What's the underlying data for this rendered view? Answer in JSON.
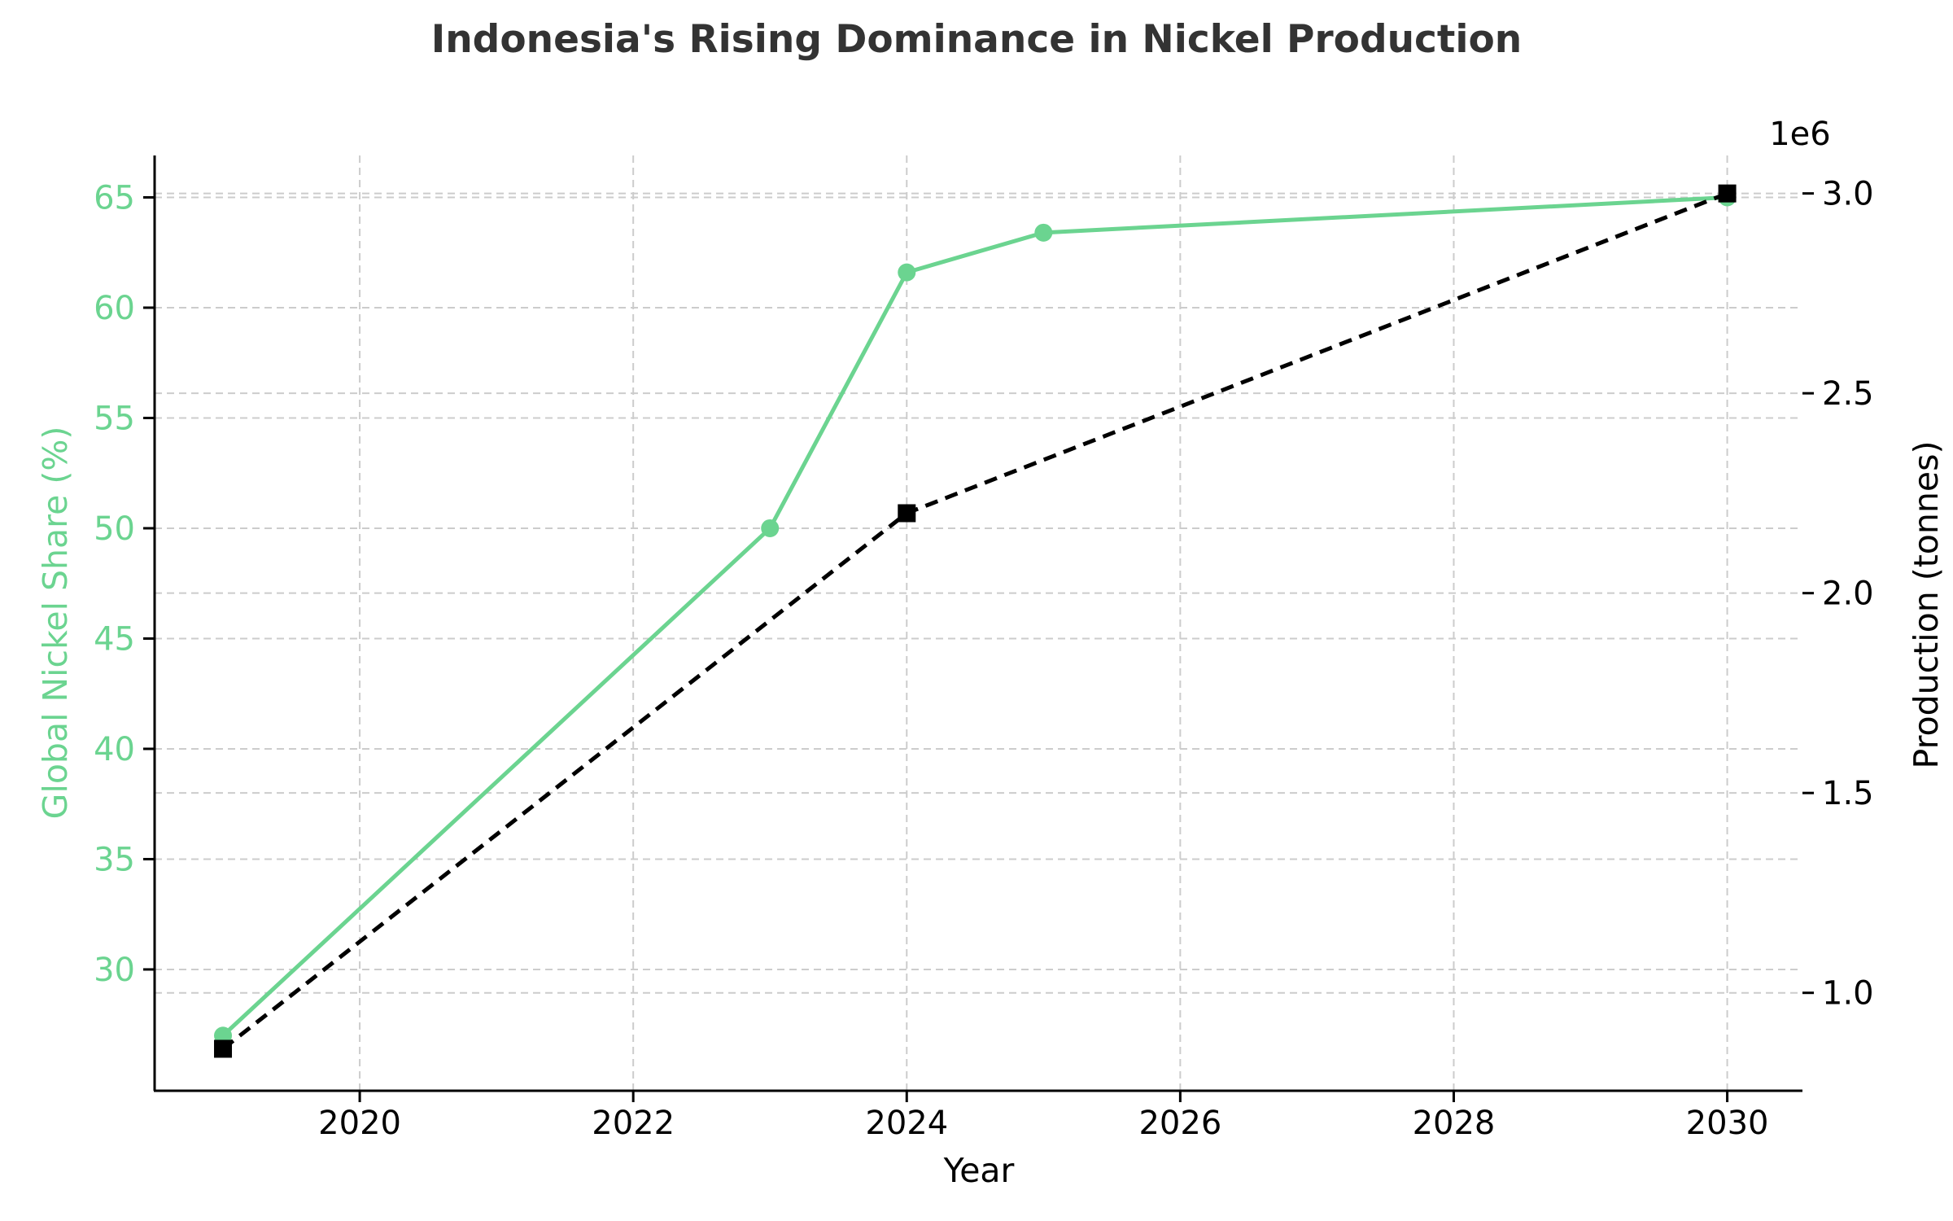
{
  "chart_data": {
    "type": "line",
    "title": "Indonesia's Rising Dominance in Nickel Production",
    "xlabel": "Year",
    "ylabel_left": "Global Nickel Share (%)",
    "ylabel_right": "Production (tonnes)",
    "right_axis_offset_label": "1e6",
    "xlim": [
      2018.5,
      2030.55
    ],
    "ylim_left": [
      24.5,
      66.9
    ],
    "ylim_right": [
      0.755,
      3.095
    ],
    "x_ticks": [
      2020,
      2022,
      2024,
      2026,
      2028,
      2030
    ],
    "y_left_ticks": [
      30,
      35,
      40,
      45,
      50,
      55,
      60,
      65
    ],
    "y_right_ticks": [
      1.0,
      1.5,
      2.0,
      2.5,
      3.0
    ],
    "y_right_tick_labels": [
      "1.0",
      "1.5",
      "2.0",
      "2.5",
      "3.0"
    ],
    "grid": true,
    "colors": {
      "share": "#6bd490",
      "production": "#000000"
    },
    "series": [
      {
        "axis": "left",
        "x": [
          2019,
          2023,
          2024,
          2025,
          2030
        ],
        "values": [
          27,
          50,
          61.6,
          63.4,
          65
        ],
        "style": "solid",
        "marker": "circle"
      },
      {
        "axis": "right",
        "x": [
          2019,
          2024,
          2030
        ],
        "values": [
          0.86,
          2.2,
          3.0
        ],
        "style": "dashed",
        "marker": "square"
      }
    ]
  }
}
